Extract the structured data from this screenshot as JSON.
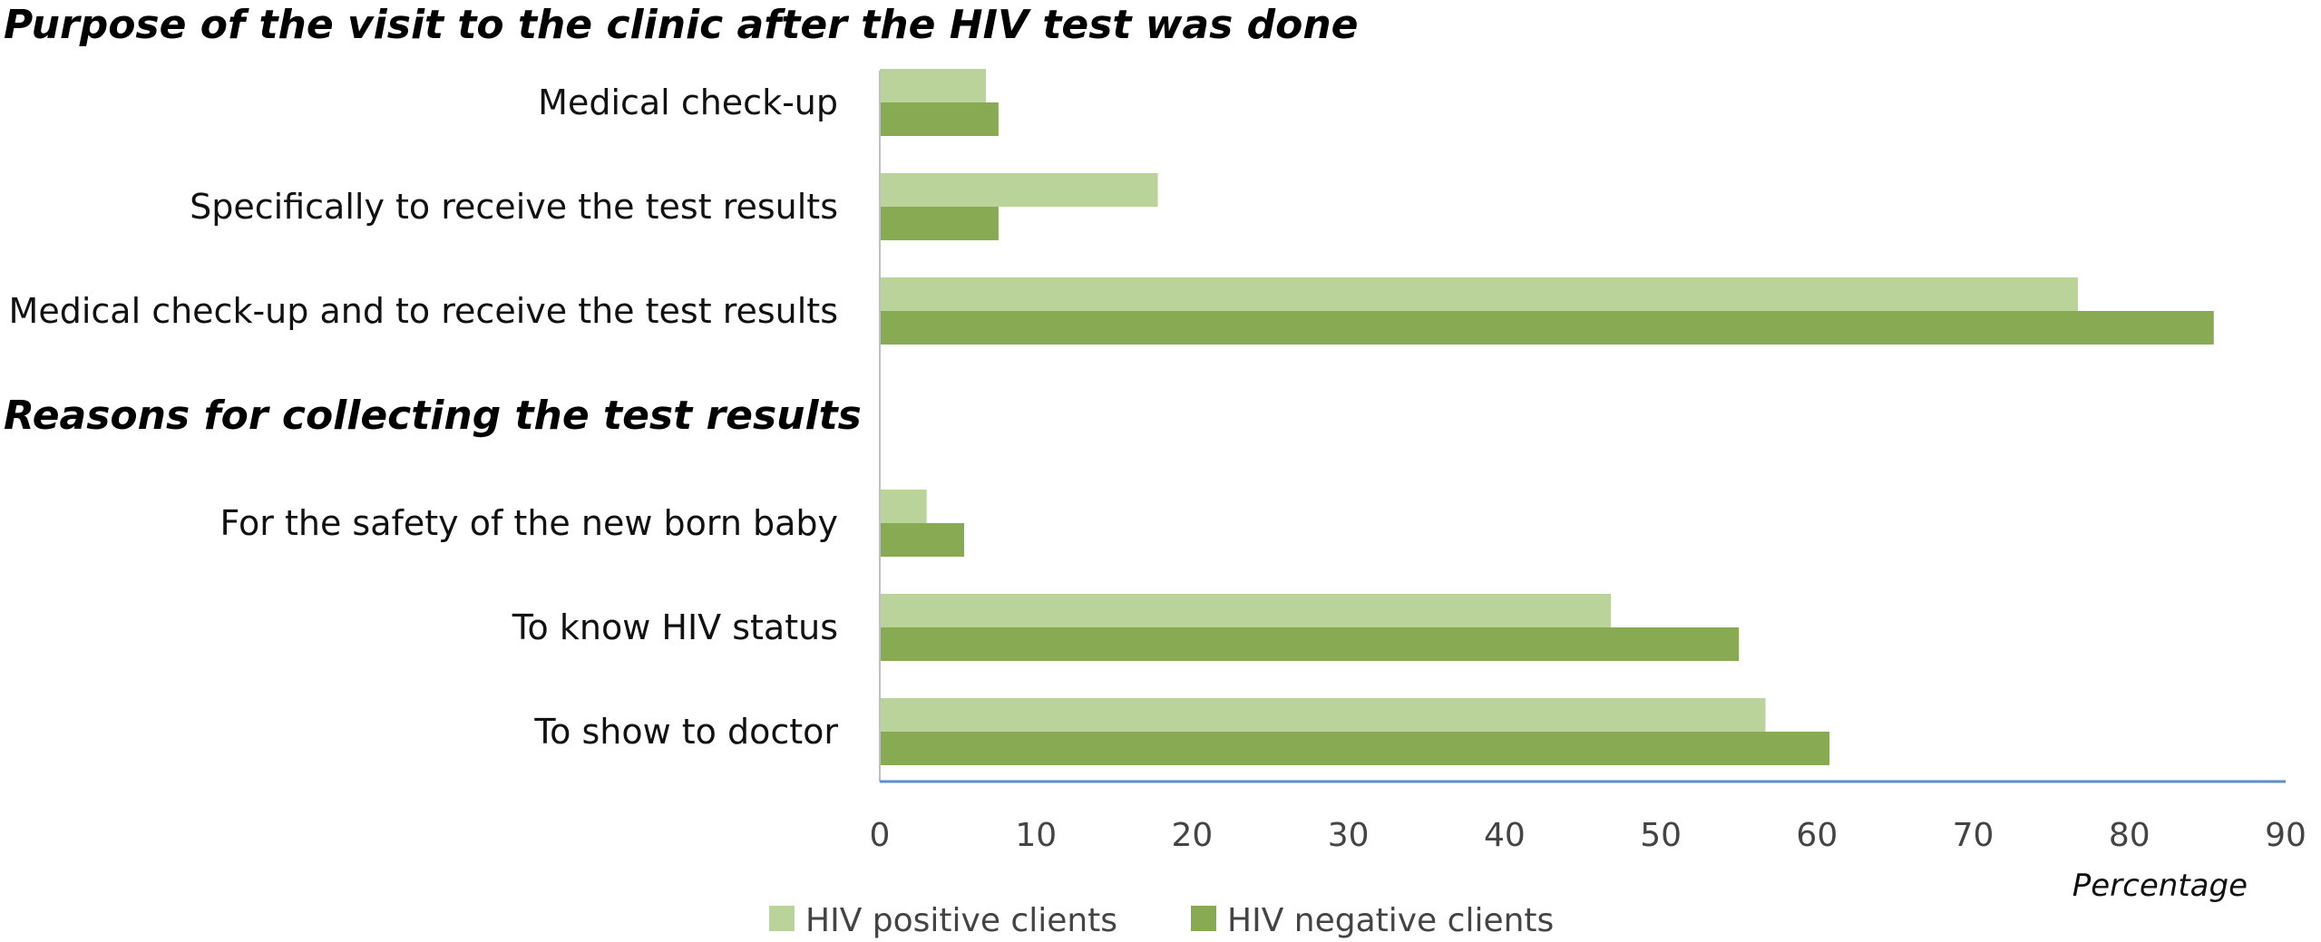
{
  "chart_data": {
    "type": "bar",
    "orientation": "horizontal",
    "xlabel": "Percentage",
    "xlim": [
      0,
      90
    ],
    "xticks": [
      0,
      10,
      20,
      30,
      40,
      50,
      60,
      70,
      80,
      90
    ],
    "grid": false,
    "legend_position": "bottom-left",
    "colors": {
      "HIV positive clients": "#b9d39b",
      "HIV negative clients": "#88aa52",
      "axis": "#5b8fc7"
    },
    "groups": [
      {
        "title": "Purpose of the visit to the clinic after the HIV test was done",
        "categories": [
          "Medical check-up",
          "Specifically to receive the test results",
          "Medical check-up and to receive the test results"
        ]
      },
      {
        "title": "Reasons for collecting the test results",
        "categories": [
          "For the safety of the new born baby",
          "To know HIV status",
          "To show to doctor"
        ]
      }
    ],
    "series": [
      {
        "name": "HIV positive clients",
        "values": [
          6.8,
          17.8,
          76.7,
          3.0,
          46.8,
          56.7
        ]
      },
      {
        "name": "HIV negative clients",
        "values": [
          7.6,
          7.6,
          85.4,
          5.4,
          55.0,
          60.8
        ]
      }
    ]
  }
}
